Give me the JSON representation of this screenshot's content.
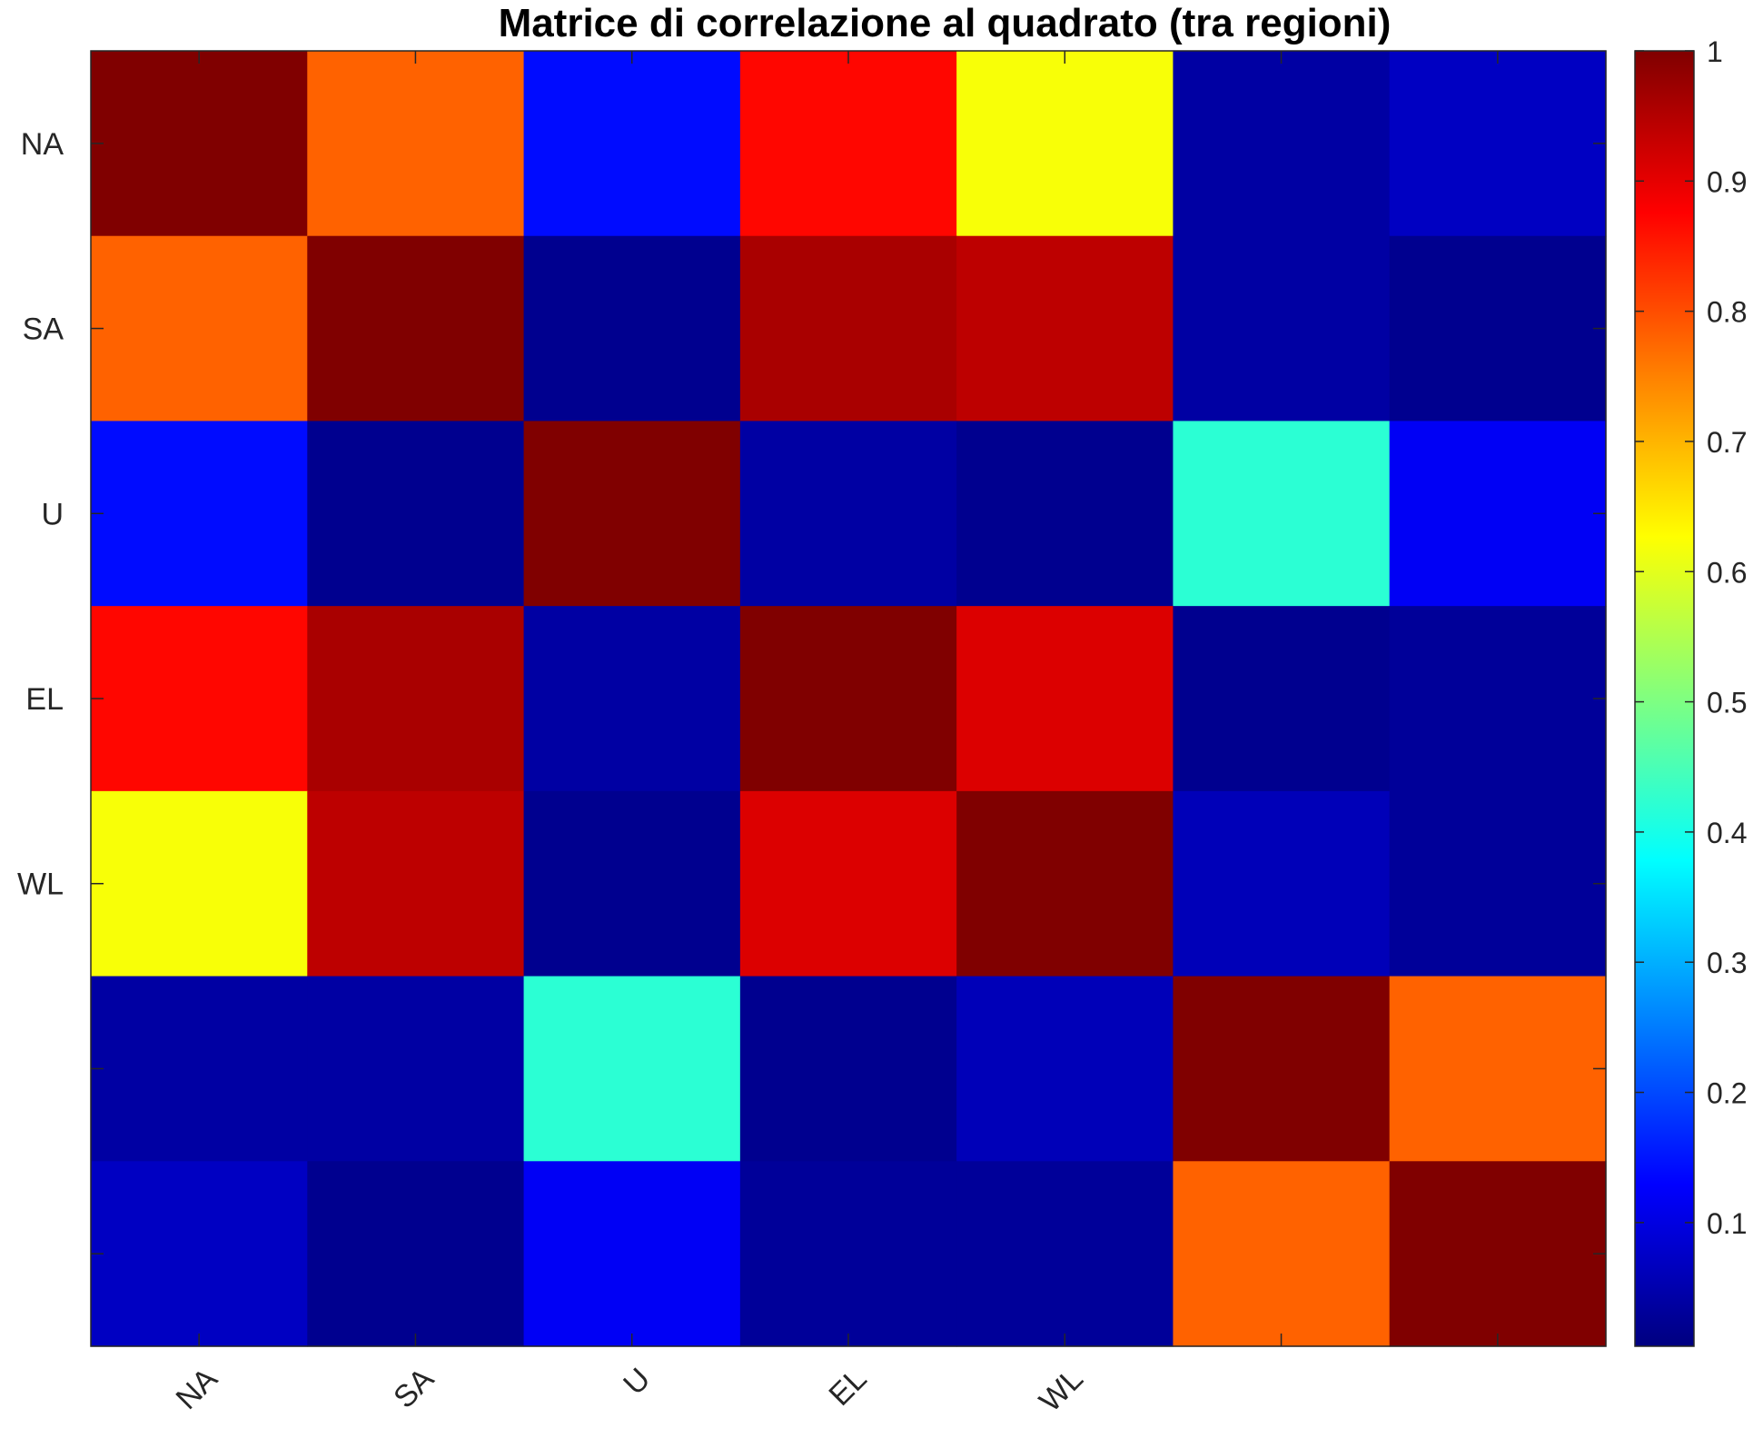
{
  "chart_data": {
    "type": "heatmap",
    "title": "Matrice di correlazione al quadrato (tra regioni)",
    "x_tick_labels": [
      "NA",
      "SA",
      "U",
      "EL",
      "WL",
      "",
      ""
    ],
    "y_tick_labels": [
      "NA",
      "SA",
      "U",
      "EL",
      "WL",
      "",
      ""
    ],
    "values": [
      [
        1.0,
        0.78,
        0.14,
        0.87,
        0.62,
        0.04,
        0.07
      ],
      [
        0.78,
        1.0,
        0.02,
        0.96,
        0.94,
        0.04,
        0.02
      ],
      [
        0.14,
        0.02,
        1.0,
        0.04,
        0.02,
        0.42,
        0.12
      ],
      [
        0.87,
        0.96,
        0.04,
        1.0,
        0.91,
        0.02,
        0.03
      ],
      [
        0.62,
        0.94,
        0.02,
        0.91,
        1.0,
        0.06,
        0.03
      ],
      [
        0.04,
        0.04,
        0.42,
        0.02,
        0.06,
        1.0,
        0.78
      ],
      [
        0.07,
        0.02,
        0.12,
        0.03,
        0.03,
        0.78,
        1.0
      ]
    ],
    "colormap": "jet",
    "colorbar": {
      "range": [
        0.005,
        1
      ],
      "ticks": [
        0.1,
        0.2,
        0.3,
        0.4,
        0.5,
        0.6,
        0.7,
        0.8,
        0.9,
        1
      ],
      "tick_labels": [
        "0.1",
        "0.2",
        "0.3",
        "0.4",
        "0.5",
        "0.6",
        "0.7",
        "0.8",
        "0.9",
        "1"
      ],
      "location": "right"
    },
    "grid": false
  }
}
